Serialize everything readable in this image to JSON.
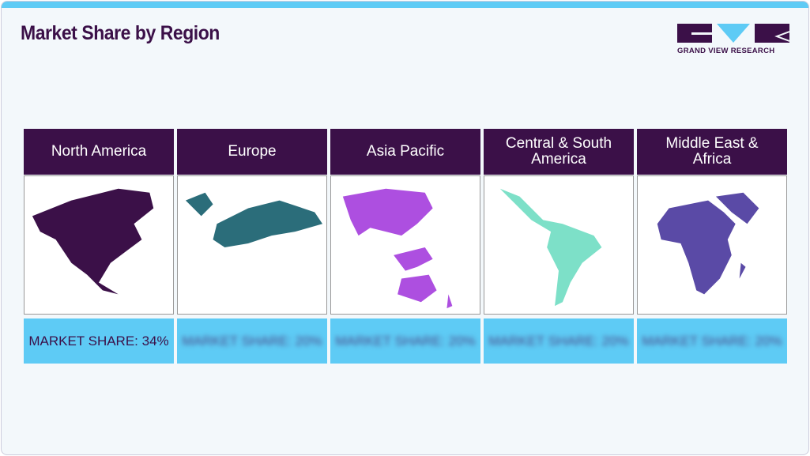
{
  "title": "Market Share by Region",
  "logo": {
    "text": "GRAND VIEW RESEARCH"
  },
  "colors": {
    "header": "#3b1048",
    "accent": "#5ecbf5"
  },
  "regions": [
    {
      "name": "North America",
      "share_label": "MARKET SHARE: 34%",
      "map_color": "#3b1048",
      "blurred": false
    },
    {
      "name": "Europe",
      "share_label": "MARKET SHARE: 20%",
      "map_color": "#2b6d7a",
      "blurred": true
    },
    {
      "name": "Asia Pacific",
      "share_label": "MARKET SHARE: 20%",
      "map_color": "#ad4fe0",
      "blurred": true
    },
    {
      "name": "Central & South America",
      "share_label": "MARKET SHARE: 20%",
      "map_color": "#7de0c8",
      "blurred": true
    },
    {
      "name": "Middle East & Africa",
      "share_label": "MARKET SHARE: 20%",
      "map_color": "#5a4aa6",
      "blurred": true
    }
  ]
}
